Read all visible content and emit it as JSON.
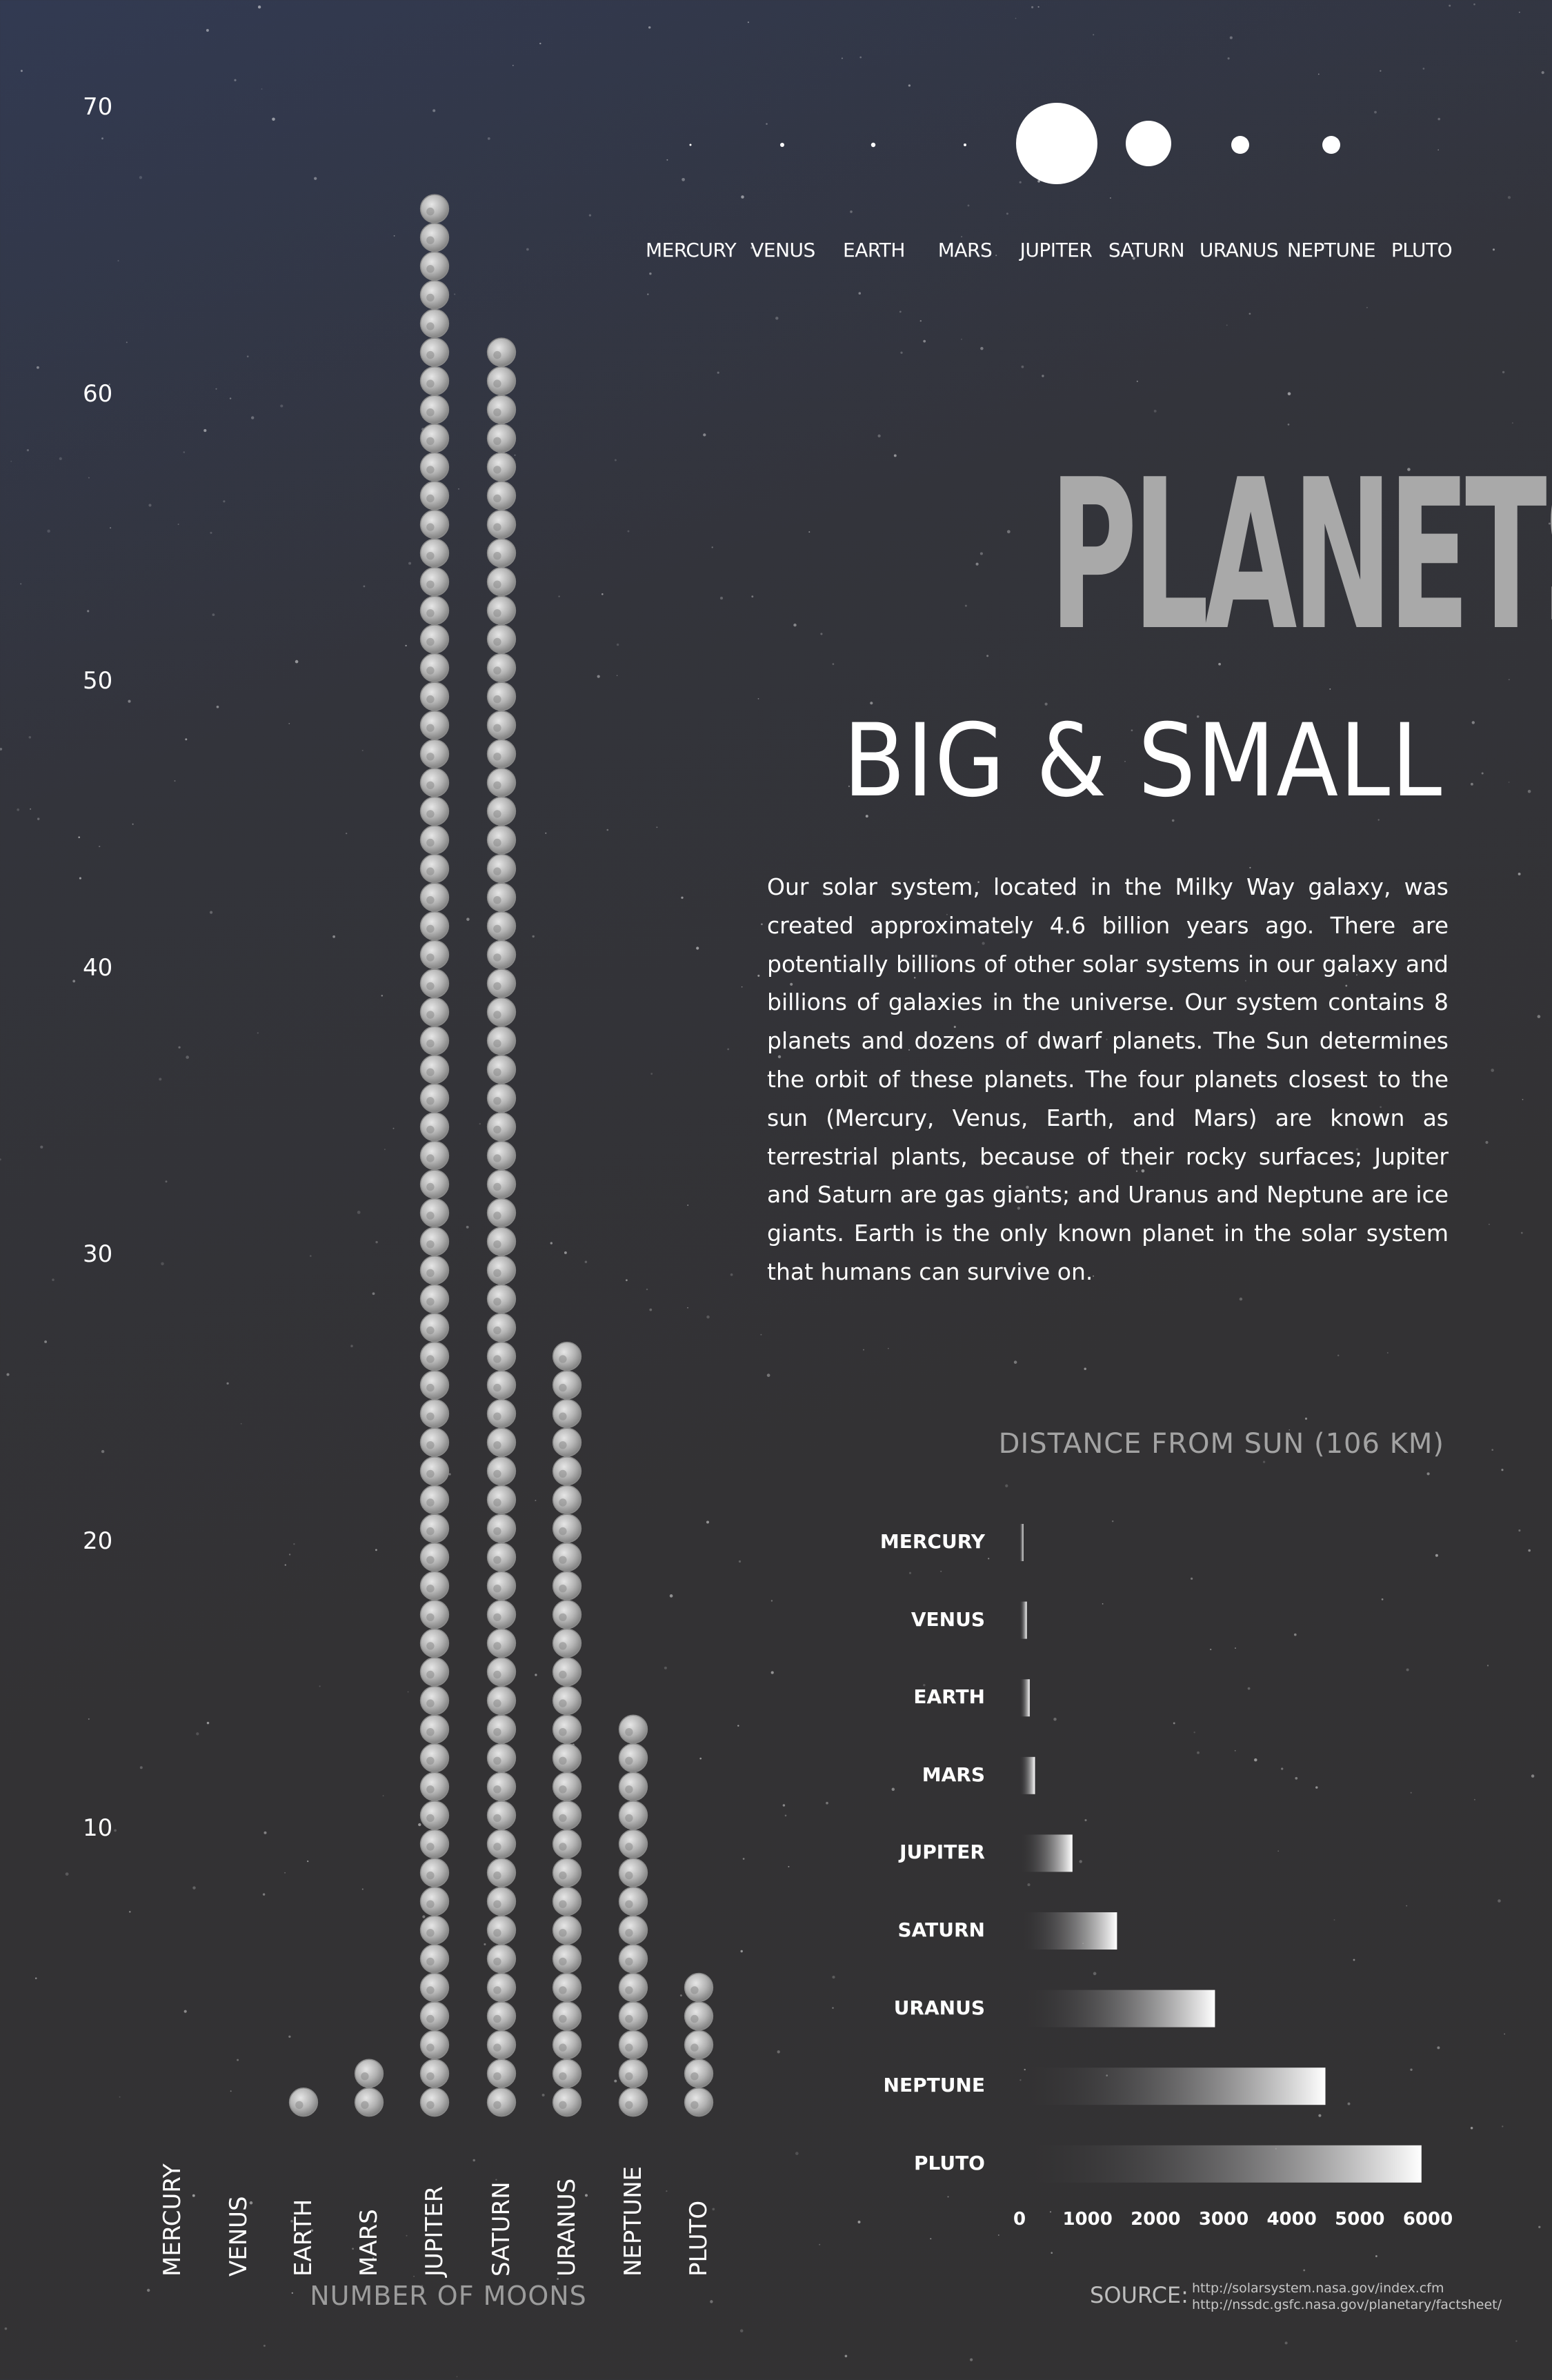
{
  "colors": {
    "background": "#333234",
    "moon_fill": "#bdbdbd",
    "title_gray": "#a9a9a9",
    "bar_light": "#ffffff"
  },
  "planet_row": {
    "names": [
      "MERCURY",
      "VENUS",
      "EARTH",
      "MARS",
      "JUPITER",
      "SATURN",
      "URANUS",
      "NEPTUNE",
      "PLUTO"
    ]
  },
  "title": "PLANETS",
  "subtitle": "BIG & SMALL",
  "description": "Our solar system, located in the Milky Way galaxy, was created approximately 4.6 billion years ago. There are potentially billions of other solar systems in our galaxy and billions of galaxies in the universe. Our system contains 8 planets and dozens of dwarf planets. The Sun determines the orbit of these planets. The four planets closest to the sun (Mercury, Venus, Earth, and Mars) are known as terrestrial plants, because of their rocky surfaces; Jupiter and Saturn are gas giants; and Uranus and Neptune are ice giants. Earth is the only known planet in the solar system that humans can survive on.",
  "source": {
    "label": "SOURCE:",
    "urls": [
      "http://solarsystem.nasa.gov/index.cfm",
      "http://nssdc.gsfc.nasa.gov/planetary/factsheet/"
    ]
  },
  "chart_data": [
    {
      "type": "bar",
      "xlabel": "NUMBER OF MOONS",
      "categories": [
        "MERCURY",
        "VENUS",
        "EARTH",
        "MARS",
        "JUPITER",
        "SATURN",
        "URANUS",
        "NEPTUNE",
        "PLUTO"
      ],
      "values": [
        0,
        0,
        1,
        2,
        67,
        62,
        27,
        14,
        5
      ],
      "yticks": [
        "10",
        "20",
        "30",
        "40",
        "50",
        "60",
        "70"
      ],
      "ylim": [
        0,
        70
      ]
    },
    {
      "type": "bar",
      "orientation": "horizontal",
      "title": "DISTANCE FROM SUN (106 KM)",
      "categories": [
        "MERCURY",
        "VENUS",
        "EARTH",
        "MARS",
        "JUPITER",
        "SATURN",
        "URANUS",
        "NEPTUNE",
        "PLUTO"
      ],
      "values": [
        57.9,
        108.2,
        149.6,
        227.9,
        778.6,
        1433.5,
        2872.5,
        4495.1,
        5906.4
      ],
      "xticks": [
        "0",
        "1000",
        "2000",
        "3000",
        "4000",
        "5000",
        "6000"
      ],
      "xlim": [
        0,
        6000
      ]
    }
  ]
}
